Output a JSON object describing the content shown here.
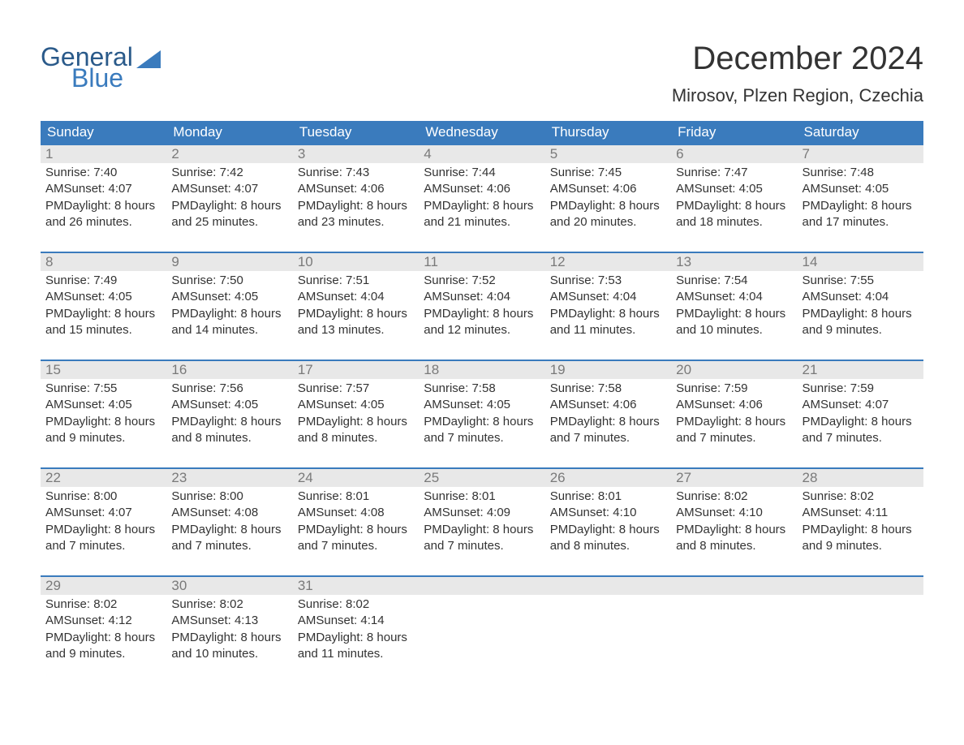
{
  "colors": {
    "brand_blue": "#3a7bbd",
    "brand_dark_blue": "#2a5a8a",
    "header_bg": "#3a7bbd",
    "header_text": "#ffffff",
    "day_num_bg": "#e8e8e8",
    "day_num_text": "#7a7a7a",
    "body_text": "#333333",
    "background": "#ffffff",
    "week_border": "#3a7bbd"
  },
  "typography": {
    "title_size_pt": 40,
    "location_size_pt": 22,
    "weekday_size_pt": 17,
    "daynum_size_pt": 17,
    "body_size_pt": 15,
    "font_family": "Helvetica"
  },
  "logo": {
    "word1": "General",
    "word2": "Blue"
  },
  "title": "December 2024",
  "location": "Mirosov, Plzen Region, Czechia",
  "weekdays": [
    "Sunday",
    "Monday",
    "Tuesday",
    "Wednesday",
    "Thursday",
    "Friday",
    "Saturday"
  ],
  "labels": {
    "sunrise": "Sunrise:",
    "sunset": "Sunset:",
    "daylight_prefix": "Daylight:"
  },
  "weeks": [
    [
      {
        "d": "1",
        "sr": "7:40 AM",
        "ss": "4:07 PM",
        "dl": "8 hours and 26 minutes."
      },
      {
        "d": "2",
        "sr": "7:42 AM",
        "ss": "4:07 PM",
        "dl": "8 hours and 25 minutes."
      },
      {
        "d": "3",
        "sr": "7:43 AM",
        "ss": "4:06 PM",
        "dl": "8 hours and 23 minutes."
      },
      {
        "d": "4",
        "sr": "7:44 AM",
        "ss": "4:06 PM",
        "dl": "8 hours and 21 minutes."
      },
      {
        "d": "5",
        "sr": "7:45 AM",
        "ss": "4:06 PM",
        "dl": "8 hours and 20 minutes."
      },
      {
        "d": "6",
        "sr": "7:47 AM",
        "ss": "4:05 PM",
        "dl": "8 hours and 18 minutes."
      },
      {
        "d": "7",
        "sr": "7:48 AM",
        "ss": "4:05 PM",
        "dl": "8 hours and 17 minutes."
      }
    ],
    [
      {
        "d": "8",
        "sr": "7:49 AM",
        "ss": "4:05 PM",
        "dl": "8 hours and 15 minutes."
      },
      {
        "d": "9",
        "sr": "7:50 AM",
        "ss": "4:05 PM",
        "dl": "8 hours and 14 minutes."
      },
      {
        "d": "10",
        "sr": "7:51 AM",
        "ss": "4:04 PM",
        "dl": "8 hours and 13 minutes."
      },
      {
        "d": "11",
        "sr": "7:52 AM",
        "ss": "4:04 PM",
        "dl": "8 hours and 12 minutes."
      },
      {
        "d": "12",
        "sr": "7:53 AM",
        "ss": "4:04 PM",
        "dl": "8 hours and 11 minutes."
      },
      {
        "d": "13",
        "sr": "7:54 AM",
        "ss": "4:04 PM",
        "dl": "8 hours and 10 minutes."
      },
      {
        "d": "14",
        "sr": "7:55 AM",
        "ss": "4:04 PM",
        "dl": "8 hours and 9 minutes."
      }
    ],
    [
      {
        "d": "15",
        "sr": "7:55 AM",
        "ss": "4:05 PM",
        "dl": "8 hours and 9 minutes."
      },
      {
        "d": "16",
        "sr": "7:56 AM",
        "ss": "4:05 PM",
        "dl": "8 hours and 8 minutes."
      },
      {
        "d": "17",
        "sr": "7:57 AM",
        "ss": "4:05 PM",
        "dl": "8 hours and 8 minutes."
      },
      {
        "d": "18",
        "sr": "7:58 AM",
        "ss": "4:05 PM",
        "dl": "8 hours and 7 minutes."
      },
      {
        "d": "19",
        "sr": "7:58 AM",
        "ss": "4:06 PM",
        "dl": "8 hours and 7 minutes."
      },
      {
        "d": "20",
        "sr": "7:59 AM",
        "ss": "4:06 PM",
        "dl": "8 hours and 7 minutes."
      },
      {
        "d": "21",
        "sr": "7:59 AM",
        "ss": "4:07 PM",
        "dl": "8 hours and 7 minutes."
      }
    ],
    [
      {
        "d": "22",
        "sr": "8:00 AM",
        "ss": "4:07 PM",
        "dl": "8 hours and 7 minutes."
      },
      {
        "d": "23",
        "sr": "8:00 AM",
        "ss": "4:08 PM",
        "dl": "8 hours and 7 minutes."
      },
      {
        "d": "24",
        "sr": "8:01 AM",
        "ss": "4:08 PM",
        "dl": "8 hours and 7 minutes."
      },
      {
        "d": "25",
        "sr": "8:01 AM",
        "ss": "4:09 PM",
        "dl": "8 hours and 7 minutes."
      },
      {
        "d": "26",
        "sr": "8:01 AM",
        "ss": "4:10 PM",
        "dl": "8 hours and 8 minutes."
      },
      {
        "d": "27",
        "sr": "8:02 AM",
        "ss": "4:10 PM",
        "dl": "8 hours and 8 minutes."
      },
      {
        "d": "28",
        "sr": "8:02 AM",
        "ss": "4:11 PM",
        "dl": "8 hours and 9 minutes."
      }
    ],
    [
      {
        "d": "29",
        "sr": "8:02 AM",
        "ss": "4:12 PM",
        "dl": "8 hours and 9 minutes."
      },
      {
        "d": "30",
        "sr": "8:02 AM",
        "ss": "4:13 PM",
        "dl": "8 hours and 10 minutes."
      },
      {
        "d": "31",
        "sr": "8:02 AM",
        "ss": "4:14 PM",
        "dl": "8 hours and 11 minutes."
      },
      null,
      null,
      null,
      null
    ]
  ]
}
